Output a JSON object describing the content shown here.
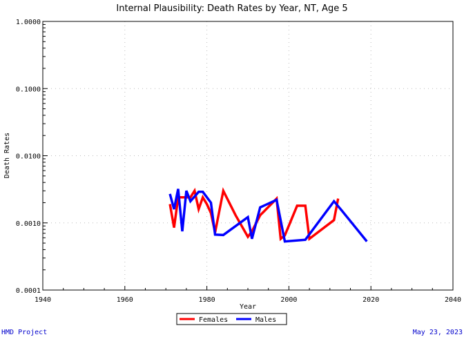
{
  "footer": {
    "left": "HMD Project",
    "right": "May 23, 2023"
  },
  "colors": {
    "females": "#ff0000",
    "males": "#0000ff",
    "footer_text": "#0000cc"
  },
  "chart_data": {
    "type": "line",
    "title": "Internal Plausibility: Death Rates by Year, NT, Age 5",
    "xlabel": "Year",
    "ylabel": "Death Rates",
    "xlim": [
      1940,
      2040
    ],
    "ylim": [
      0.0001,
      1.0
    ],
    "yscale": "log",
    "xticks": [
      "1940",
      "1960",
      "1980",
      "2000",
      "2020",
      "2040"
    ],
    "yticks": [
      "0.0001",
      "0.0010",
      "0.0100",
      "0.1000",
      "1.0000"
    ],
    "grid": true,
    "legend": "bottom-center",
    "series": [
      {
        "name": "Females",
        "color": "#ff0000",
        "points": [
          [
            1971,
            0.0019
          ],
          [
            1972,
            0.00085
          ],
          [
            1973,
            0.0024
          ],
          [
            1974,
            0.0024
          ],
          [
            1975,
            0.0024
          ],
          [
            1976,
            0.0024
          ],
          [
            1977,
            0.003
          ],
          [
            1978,
            0.0016
          ],
          [
            1979,
            0.0024
          ],
          [
            1980,
            0.0019
          ],
          [
            1981,
            0.0014
          ],
          [
            1982,
            0.00072
          ],
          [
            1984,
            0.003
          ],
          [
            1987,
            0.0013
          ],
          [
            1990,
            0.00062
          ],
          [
            1991,
            0.00075
          ],
          [
            1993,
            0.0013
          ],
          [
            1997,
            0.0023
          ],
          [
            1998,
            0.00058
          ],
          [
            1999,
            0.00065
          ],
          [
            2002,
            0.0018
          ],
          [
            2004,
            0.0018
          ],
          [
            2005,
            0.00058
          ],
          [
            2011,
            0.0011
          ],
          [
            2012,
            0.0023
          ]
        ]
      },
      {
        "name": "Males",
        "color": "#0000ff",
        "points": [
          [
            1971,
            0.0027
          ],
          [
            1972,
            0.0016
          ],
          [
            1973,
            0.0032
          ],
          [
            1974,
            0.00075
          ],
          [
            1975,
            0.003
          ],
          [
            1976,
            0.0021
          ],
          [
            1978,
            0.0029
          ],
          [
            1979,
            0.0029
          ],
          [
            1981,
            0.002
          ],
          [
            1982,
            0.00067
          ],
          [
            1984,
            0.00066
          ],
          [
            1990,
            0.00122
          ],
          [
            1991,
            0.00058
          ],
          [
            1993,
            0.0017
          ],
          [
            1997,
            0.0022
          ],
          [
            1999,
            0.00053
          ],
          [
            2004,
            0.00056
          ],
          [
            2011,
            0.0021
          ],
          [
            2013,
            0.0015
          ],
          [
            2019,
            0.00053
          ]
        ]
      }
    ]
  }
}
